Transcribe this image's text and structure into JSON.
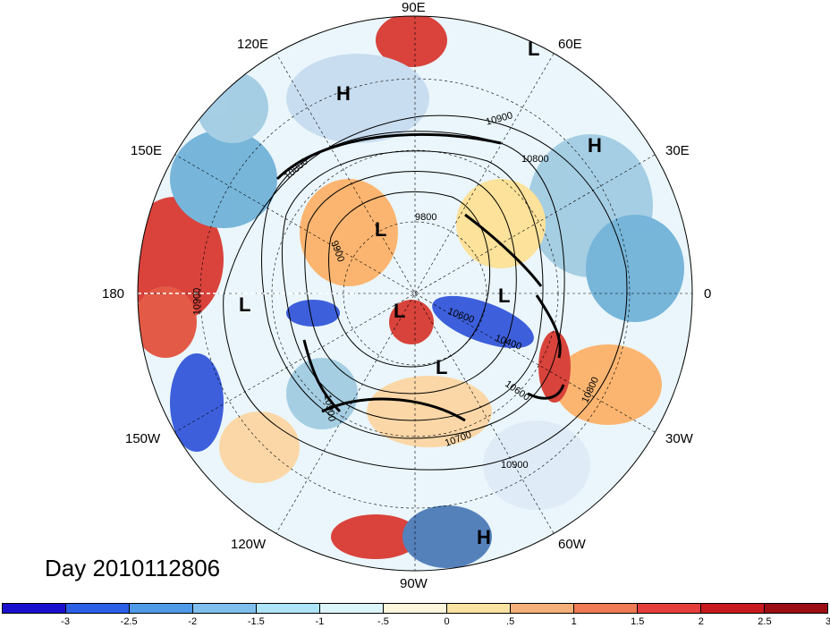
{
  "title": "Day 2010112806",
  "longitude_labels": [
    "90E",
    "60E",
    "30E",
    "0",
    "30W",
    "60W",
    "90W",
    "120W",
    "150W",
    "180",
    "150E",
    "120E"
  ],
  "pressure_centers": [
    {
      "type": "H"
    },
    {
      "type": "L"
    },
    {
      "type": "H"
    },
    {
      "type": "L"
    },
    {
      "type": "L"
    },
    {
      "type": "L"
    },
    {
      "type": "L"
    },
    {
      "type": "L"
    },
    {
      "type": "H"
    }
  ],
  "contour_labels": [
    "10900",
    "10800",
    "10800",
    "9800",
    "9900",
    "10900",
    "10600",
    "10400",
    "10600",
    "10800",
    "10700",
    "10900",
    "10900"
  ],
  "colorbar": {
    "labels": [
      "-3",
      "-2.5",
      "-2",
      "-1.5",
      "-1",
      "-.5",
      "0",
      ".5",
      "1",
      "1.5",
      "2",
      "2.5",
      "3"
    ],
    "colors": [
      "#1a0fcc",
      "#2a5fe6",
      "#4f9ae8",
      "#7fbfee",
      "#aee4f7",
      "#dcf5fb",
      "#fbf6dc",
      "#fae3a2",
      "#f5b07a",
      "#ee7b54",
      "#e53e3a",
      "#c81a1e",
      "#9b0e13"
    ]
  }
}
